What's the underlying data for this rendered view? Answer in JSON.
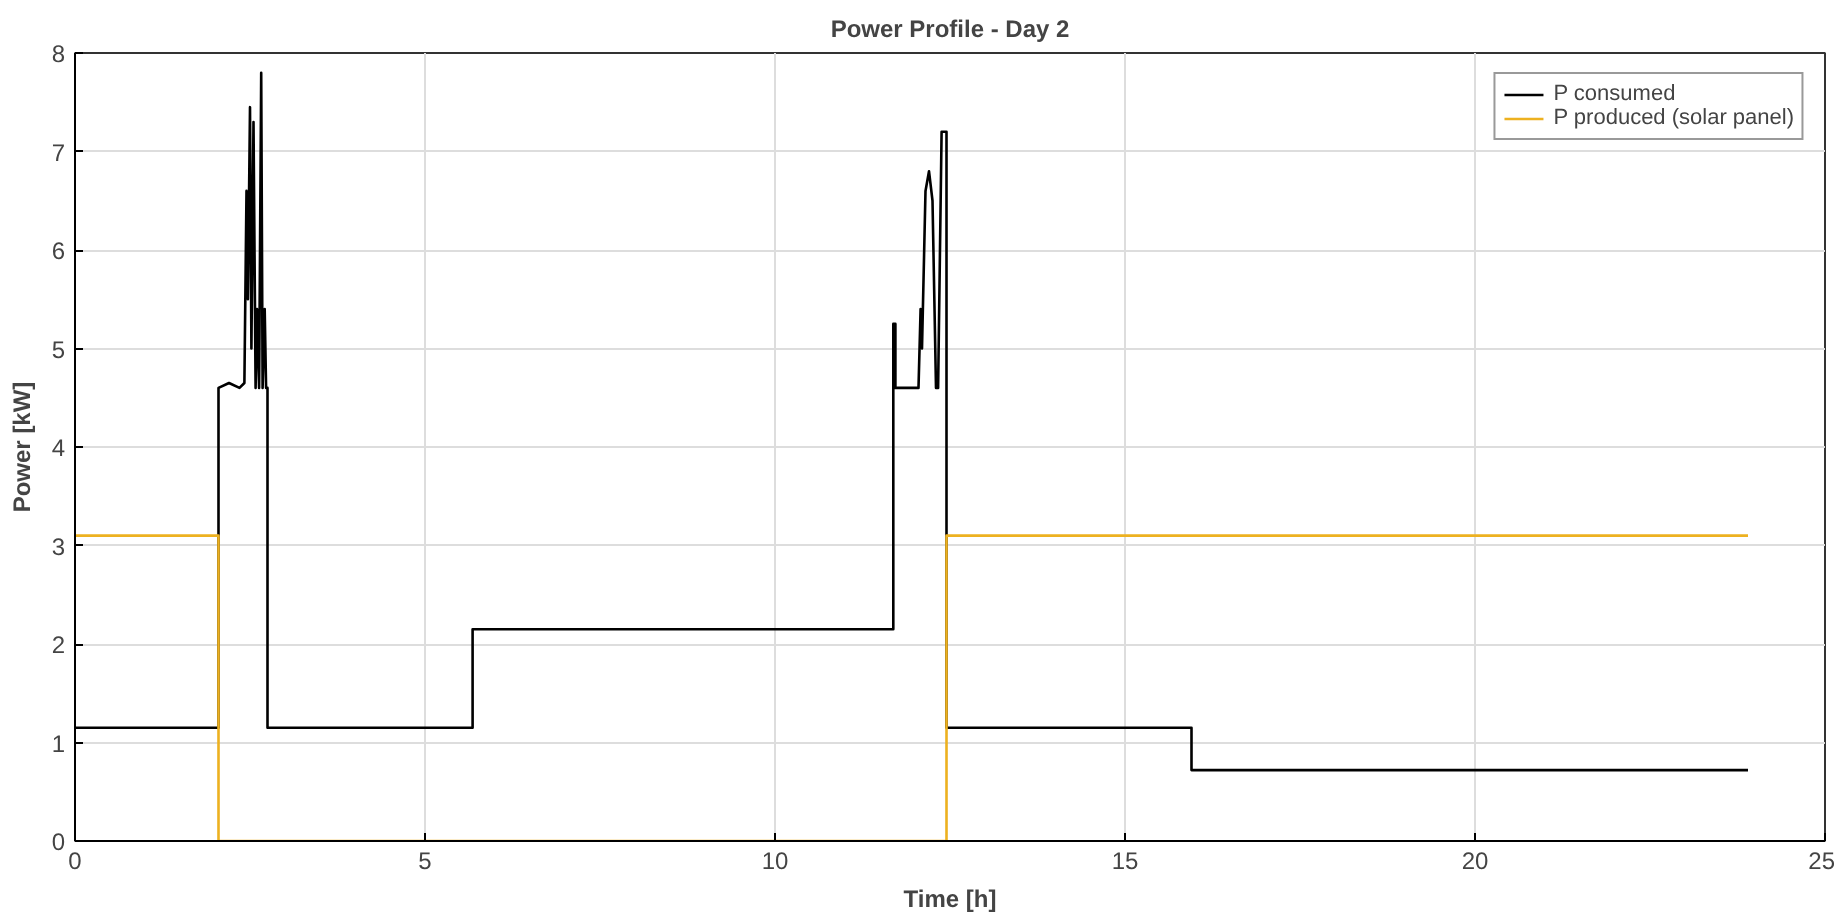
{
  "chart_data": {
    "type": "line",
    "title": "Power Profile - Day 2",
    "xlabel": "Time [h]",
    "ylabel": "Power [kW]",
    "xlim": [
      0,
      25
    ],
    "ylim": [
      0,
      8
    ],
    "xticks": [
      0,
      5,
      10,
      15,
      20,
      25
    ],
    "yticks": [
      0,
      1,
      2,
      3,
      4,
      5,
      6,
      7,
      8
    ],
    "grid": true,
    "legend": "top right",
    "series": [
      {
        "name": "P consumed",
        "color": "#000000",
        "x": [
          0,
          2.05,
          2.05,
          2.2,
          2.35,
          2.42,
          2.45,
          2.47,
          2.5,
          2.52,
          2.55,
          2.58,
          2.6,
          2.63,
          2.66,
          2.68,
          2.71,
          2.73,
          2.75,
          2.75,
          5.68,
          5.68,
          11.69,
          11.69,
          11.72,
          11.72,
          12.05,
          12.08,
          12.1,
          12.15,
          12.2,
          12.25,
          12.3,
          12.33,
          12.38,
          12.43,
          12.45,
          12.45,
          15.95,
          15.95,
          23.9
        ],
        "values": [
          1.15,
          1.15,
          4.6,
          4.65,
          4.6,
          4.65,
          6.6,
          5.5,
          7.45,
          5.0,
          7.3,
          4.6,
          5.4,
          4.6,
          7.8,
          4.6,
          5.4,
          4.6,
          4.6,
          1.15,
          1.15,
          2.15,
          2.15,
          5.25,
          5.25,
          4.6,
          4.6,
          5.4,
          5.0,
          6.6,
          6.8,
          6.5,
          4.6,
          4.6,
          7.2,
          7.2,
          7.2,
          1.15,
          1.15,
          0.72,
          0.72
        ]
      },
      {
        "name": "P produced (solar panel)",
        "color": "#edb120",
        "x": [
          0,
          2.05,
          2.05,
          12.45,
          12.45,
          23.9
        ],
        "values": [
          3.1,
          3.1,
          0,
          0,
          3.1,
          3.1
        ]
      }
    ]
  }
}
